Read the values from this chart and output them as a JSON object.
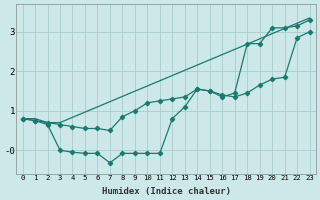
{
  "xlabel": "Humidex (Indice chaleur)",
  "background_color": "#cce8e8",
  "grid_color": "#aacccc",
  "line_color": "#1a7a6e",
  "x_ticks": [
    0,
    1,
    2,
    3,
    4,
    5,
    6,
    7,
    8,
    9,
    10,
    11,
    12,
    13,
    14,
    15,
    16,
    17,
    18,
    19,
    20,
    21,
    22,
    23
  ],
  "y_ticks": [
    0,
    1,
    2,
    3
  ],
  "y_tick_labels": [
    "-0",
    "1",
    "2",
    "3"
  ],
  "ylim": [
    -0.6,
    3.7
  ],
  "xlim": [
    -0.5,
    23.5
  ],
  "series1_x": [
    0,
    1,
    2,
    3,
    23
  ],
  "series1_y": [
    0.8,
    0.8,
    0.7,
    0.7,
    3.35
  ],
  "series2_x": [
    0,
    1,
    2,
    3,
    4,
    5,
    6,
    7,
    8,
    9,
    10,
    11,
    12,
    13,
    14,
    15,
    16,
    17,
    18,
    19,
    20,
    21,
    22,
    23
  ],
  "series2_y": [
    0.8,
    0.75,
    0.7,
    0.65,
    0.6,
    0.55,
    0.55,
    0.5,
    0.85,
    1.0,
    1.2,
    1.25,
    1.3,
    1.35,
    1.55,
    1.5,
    1.4,
    1.35,
    1.45,
    1.65,
    1.8,
    1.85,
    2.85,
    3.0
  ],
  "series3_x": [
    0,
    1,
    2,
    3,
    4,
    5,
    6,
    7,
    8,
    9,
    10,
    11,
    12,
    13,
    14,
    15,
    16,
    17,
    18,
    19,
    20,
    21,
    22,
    23
  ],
  "series3_y": [
    0.8,
    0.75,
    0.65,
    0.0,
    -0.05,
    -0.08,
    -0.08,
    -0.32,
    -0.08,
    -0.08,
    -0.08,
    -0.08,
    0.8,
    1.1,
    1.55,
    1.5,
    1.35,
    1.45,
    2.7,
    2.7,
    3.1,
    3.1,
    3.15,
    3.3
  ]
}
